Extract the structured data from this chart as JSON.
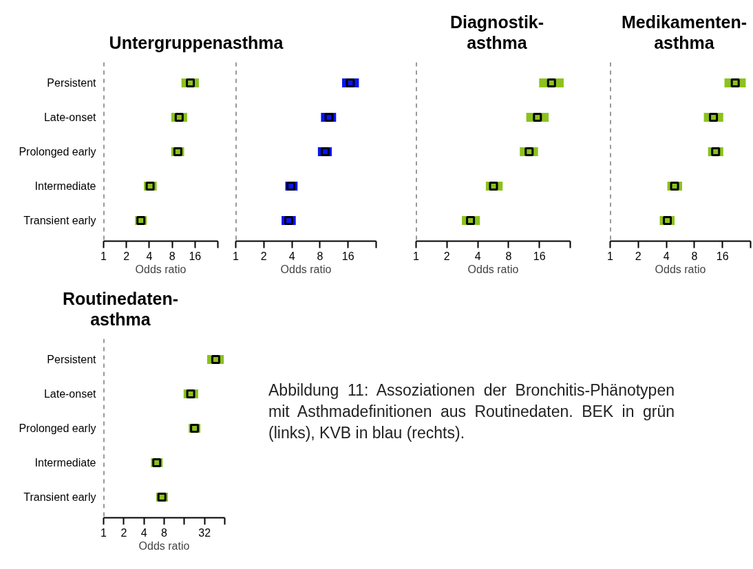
{
  "chart_data": [
    {
      "type": "scatter",
      "orientation": "horizontal",
      "title": "Untergruppenasthma",
      "xlabel": "Odds ratio",
      "categories": [
        "Persistent",
        "Late-onset",
        "Prolonged early",
        "Intermediate",
        "Transient early"
      ],
      "log": "x",
      "xlim": [
        1,
        32
      ],
      "xticks": [
        1,
        2,
        4,
        8,
        16,
        {
          "value": 32,
          "label": null
        }
      ],
      "grid": false,
      "marker": "square",
      "series": [
        {
          "color": "#8cc21e",
          "values": [
            13.9,
            9.9,
            9.5,
            4.1,
            3.1
          ],
          "errors": [
            [
              10.6,
              18.0
            ],
            [
              7.8,
              12.6
            ],
            [
              7.8,
              11.5
            ],
            [
              3.4,
              5.0
            ],
            [
              2.6,
              3.7
            ]
          ]
        }
      ],
      "ref_lines": [
        {
          "axis": "x",
          "value": 1,
          "line_style": "dashed"
        }
      ]
    },
    {
      "type": "scatter",
      "orientation": "horizontal",
      "xlabel": "Odds ratio",
      "categories": [
        null,
        null,
        null,
        null,
        null
      ],
      "log": "x",
      "xlim": [
        1,
        32
      ],
      "xticks": [
        1,
        2,
        4,
        8,
        16,
        {
          "value": 32,
          "label": null
        }
      ],
      "grid": false,
      "marker": "square",
      "tick_labels": "x",
      "series": [
        {
          "color": "#0a14f0",
          "values": [
            16.9,
            10.0,
            9.1,
            3.9,
            3.7
          ],
          "errors": [
            [
              13.8,
              20.9
            ],
            [
              8.2,
              11.9
            ],
            [
              7.6,
              10.7
            ],
            [
              3.4,
              4.6
            ],
            [
              3.1,
              4.4
            ]
          ]
        }
      ],
      "ref_lines": [
        {
          "axis": "x",
          "value": 1,
          "line_style": "dashed"
        }
      ]
    },
    {
      "type": "scatter",
      "orientation": "horizontal",
      "title": "Diagnostik-\nasthma",
      "xlabel": "Odds ratio",
      "categories": [
        null,
        null,
        null,
        null,
        null
      ],
      "log": "x",
      "xlim": [
        1,
        32
      ],
      "xticks": [
        1,
        2,
        4,
        8,
        16,
        {
          "value": 32,
          "label": null
        }
      ],
      "grid": false,
      "marker": "square",
      "tick_labels": "x",
      "series": [
        {
          "color": "#8cc21e",
          "values": [
            21,
            15.3,
            12.7,
            5.7,
            3.4
          ],
          "errors": [
            [
              15.9,
              27.6
            ],
            [
              11.9,
              19.7
            ],
            [
              10.3,
              15.5
            ],
            [
              4.8,
              7.0
            ],
            [
              2.8,
              4.2
            ]
          ]
        }
      ],
      "ref_lines": [
        {
          "axis": "x",
          "value": 1,
          "line_style": "dashed"
        }
      ]
    },
    {
      "type": "scatter",
      "orientation": "horizontal",
      "title": "Medikamenten-\nasthma",
      "xlabel": "Odds ratio",
      "categories": [
        null,
        null,
        null,
        null,
        null
      ],
      "log": "x",
      "xlim": [
        1,
        32
      ],
      "xticks": [
        1,
        2,
        4,
        8,
        16,
        {
          "value": 32,
          "label": null
        }
      ],
      "grid": false,
      "marker": "square",
      "tick_labels": "x",
      "series": [
        {
          "color": "#8cc21e",
          "values": [
            21.9,
            12.8,
            13.5,
            4.9,
            4.1
          ],
          "errors": [
            [
              16.8,
              28.4
            ],
            [
              10.1,
              16.3
            ],
            [
              11.2,
              16.3
            ],
            [
              4.1,
              5.9
            ],
            [
              3.4,
              4.9
            ]
          ]
        }
      ],
      "ref_lines": [
        {
          "axis": "x",
          "value": 1,
          "line_style": "dashed"
        }
      ]
    },
    {
      "type": "scatter",
      "orientation": "horizontal",
      "title": "Routinedaten-\nasthma",
      "xlabel": "Odds ratio",
      "categories": [
        "Persistent",
        "Late-onset",
        "Prolonged early",
        "Intermediate",
        "Transient early"
      ],
      "log": "x",
      "xlim": [
        1,
        64
      ],
      "xticks": [
        1,
        2,
        4,
        8,
        {
          "value": 16,
          "label": null
        },
        32,
        {
          "value": 64,
          "label": null
        }
      ],
      "grid": false,
      "marker": "square",
      "series": [
        {
          "color": "#8cc21e",
          "values": [
            47,
            19.9,
            22.7,
            6.2,
            7.4
          ],
          "errors": [
            [
              35,
              62
            ],
            [
              15.6,
              25.7
            ],
            [
              18.6,
              27.7
            ],
            [
              5.1,
              7.6
            ],
            [
              6.1,
              9.1
            ]
          ]
        }
      ],
      "ref_lines": [
        {
          "axis": "x",
          "value": 1,
          "line_style": "dashed"
        }
      ],
      "annotations": [
        "Abbildung 11: Assoziationen der Bronchitis-Phänotypen mit Asthmadefinitionen aus Routinedaten. BEK in grün (links), KVB in blau (rechts)."
      ]
    }
  ]
}
